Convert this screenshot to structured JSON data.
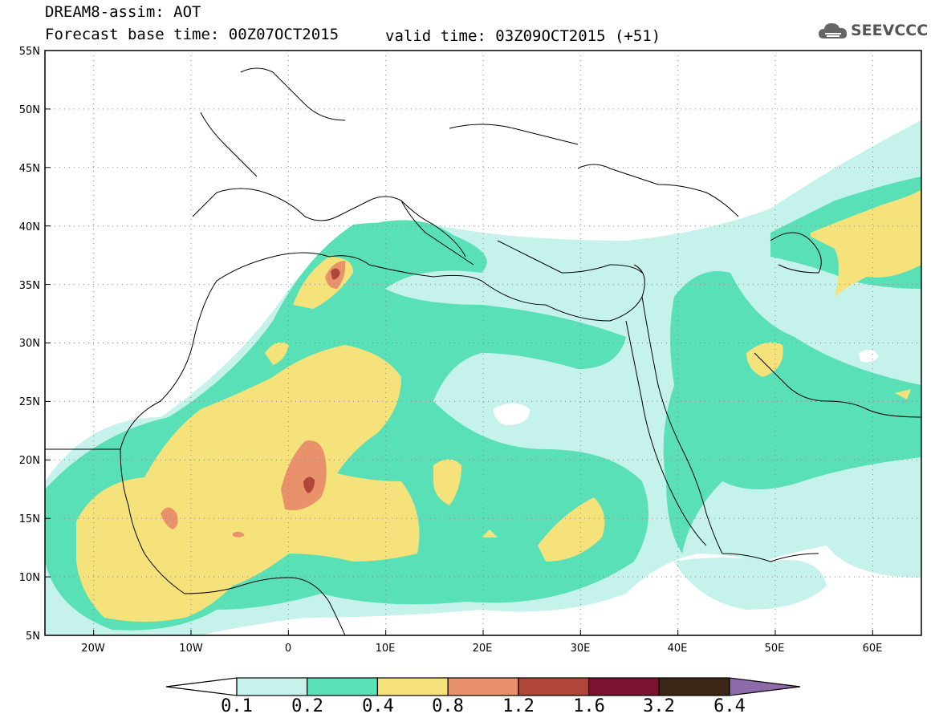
{
  "header": {
    "title_line1": "DREAM8-assim: AOT",
    "title_line2": "Forecast base time: 00Z07OCT2015",
    "valid_time": "valid time: 03Z09OCT2015 (+51)",
    "logo_text": "SEEVCCC"
  },
  "map": {
    "lat_labels": [
      "55N",
      "50N",
      "45N",
      "40N",
      "35N",
      "30N",
      "25N",
      "20N",
      "15N",
      "10N",
      "5N"
    ],
    "lon_labels": [
      "20W",
      "10W",
      "0",
      "10E",
      "20E",
      "30E",
      "40E",
      "50E",
      "60E"
    ],
    "extent": {
      "lon_min": -25,
      "lon_max": 65,
      "lat_min": 5,
      "lat_max": 55
    },
    "grid": true,
    "field": "Aerosol Optical Thickness"
  },
  "colorbar": {
    "levels": [
      "0.1",
      "0.2",
      "0.4",
      "0.8",
      "1.2",
      "1.6",
      "3.2",
      "6.4"
    ],
    "colors": [
      "#c6f2ec",
      "#5ae0b7",
      "#f5e27a",
      "#e8916b",
      "#b0453a",
      "#7a1230",
      "#3b2516",
      "#8e6aa8"
    ],
    "under_color": "#ffffff"
  }
}
